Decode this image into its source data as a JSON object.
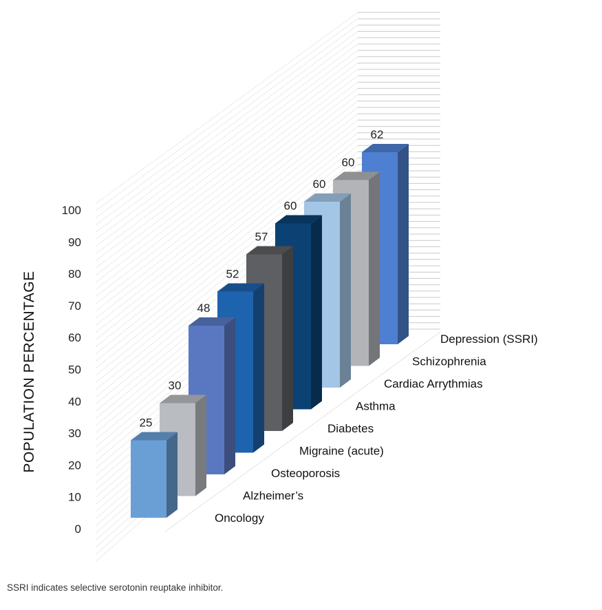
{
  "chart_data": {
    "type": "bar",
    "categories": [
      "Oncology",
      "Alzheimer’s",
      "Osteoporosis",
      "Migraine (acute)",
      "Diabetes",
      "Asthma",
      "Cardiac Arrythmias",
      "Schizophrenia",
      "Depression (SSRI)"
    ],
    "values": [
      25,
      30,
      48,
      52,
      57,
      60,
      60,
      60,
      62
    ],
    "ylabel": "POPULATION PERCENTAGE",
    "ylim": [
      0,
      100
    ],
    "yticks": [
      0,
      10,
      20,
      30,
      40,
      50,
      60,
      70,
      80,
      90,
      100
    ],
    "grid": true,
    "style": "3d",
    "colors": [
      "#6a9fd6",
      "#b9bcc1",
      "#5a78c2",
      "#1e63ad",
      "#5e5f62",
      "#0b4273",
      "#a3c6e6",
      "#b2b4b8",
      "#4f7fd0"
    ]
  },
  "footnote": "SSRI indicates selective serotonin reuptake inhibitor."
}
